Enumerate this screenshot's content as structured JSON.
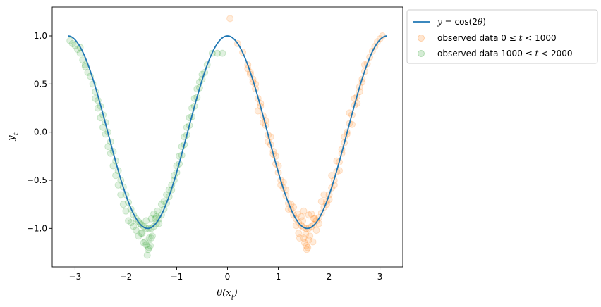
{
  "chart_data": {
    "type": "scatter",
    "xlabel": "θ(x_t)",
    "ylabel": "y_t",
    "xlim": [
      -3.45,
      3.45
    ],
    "ylim": [
      -1.4,
      1.3
    ],
    "xticks": [
      -3,
      -2,
      -1,
      0,
      1,
      2,
      3
    ],
    "xtick_labels": [
      "−3",
      "−2",
      "−1",
      "0",
      "1",
      "2",
      "3"
    ],
    "yticks": [
      -1.0,
      -0.5,
      0.0,
      0.5,
      1.0
    ],
    "ytick_labels": [
      "−1.0",
      "−0.5",
      "0.0",
      "0.5",
      "1.0"
    ],
    "grid": false,
    "legend": {
      "placement": "outside upper right",
      "entries": [
        {
          "label": "y = cos(2θ)",
          "marker": "line",
          "color": "#1f77b4"
        },
        {
          "label": "observed data 0 ≤ t < 1000",
          "marker": "circle",
          "color": "#ff7f0e"
        },
        {
          "label": "observed data 1000 ≤ t < 2000",
          "marker": "circle",
          "color": "#2ca02c"
        }
      ]
    },
    "series": [
      {
        "name": "y = cos(2θ)",
        "kind": "line",
        "color": "#1f77b4",
        "x": [
          -3.1416,
          -3.0,
          -2.8,
          -2.6,
          -2.4,
          -2.2,
          -2.0,
          -1.8,
          -1.6,
          -1.5708,
          -1.4,
          -1.2,
          -1.0,
          -0.8,
          -0.6,
          -0.4,
          -0.2,
          0.0,
          0.2,
          0.4,
          0.6,
          0.8,
          1.0,
          1.2,
          1.4,
          1.5708,
          1.6,
          1.8,
          2.0,
          2.2,
          2.4,
          2.6,
          2.8,
          3.0,
          3.1416
        ],
        "y": [
          1.0,
          0.96,
          0.775,
          0.469,
          0.087,
          -0.307,
          -0.654,
          -0.897,
          -0.998,
          -1.0,
          -0.942,
          -0.737,
          -0.416,
          -0.029,
          0.362,
          0.697,
          0.921,
          1.0,
          0.921,
          0.697,
          0.362,
          -0.029,
          -0.416,
          -0.737,
          -0.942,
          -1.0,
          -0.998,
          -0.897,
          -0.654,
          -0.307,
          0.087,
          0.469,
          0.775,
          0.96,
          1.0
        ]
      },
      {
        "name": "observed data 0 ≤ t < 1000",
        "kind": "scatter",
        "color": "#ff7f0e",
        "alpha": 0.15,
        "x": [
          0.05,
          0.2,
          0.3,
          0.4,
          0.45,
          0.5,
          0.55,
          0.6,
          0.65,
          0.7,
          0.75,
          0.8,
          0.85,
          0.9,
          0.95,
          1.0,
          1.05,
          1.1,
          1.15,
          1.2,
          1.25,
          1.3,
          1.35,
          1.4,
          1.45,
          1.5,
          1.55,
          1.6,
          1.65,
          1.7,
          1.75,
          1.8,
          1.85,
          1.9,
          1.95,
          2.0,
          2.05,
          2.1,
          2.15,
          2.2,
          2.25,
          2.3,
          2.35,
          2.4,
          2.45,
          2.5,
          2.55,
          2.6,
          2.65,
          2.7,
          2.75,
          2.8,
          2.85,
          2.9,
          2.95,
          3.0,
          3.05,
          1.5,
          1.6,
          1.45,
          1.65,
          1.55,
          1.4,
          1.7,
          1.35,
          1.75,
          1.3,
          1.8,
          1.25,
          1.85,
          1.2,
          1.9,
          1.15,
          1.95,
          1.1,
          2.0,
          1.05,
          2.05,
          1.0,
          2.1,
          0.95,
          2.15,
          0.9,
          2.2,
          0.85,
          2.25,
          0.8,
          2.3,
          0.75,
          2.35,
          0.7,
          2.4,
          0.65,
          2.45,
          0.6,
          2.5,
          0.55,
          2.55,
          0.5,
          2.6,
          0.45,
          2.65,
          0.4,
          2.7,
          1.58,
          1.52,
          1.62,
          1.48,
          1.56,
          1.54,
          1.42,
          1.68,
          1.38,
          1.72,
          1.5,
          1.6
        ],
        "y": [
          1.18,
          0.92,
          0.83,
          0.7,
          0.62,
          0.55,
          0.45,
          0.35,
          0.27,
          0.17,
          0.07,
          -0.03,
          -0.13,
          -0.23,
          -0.33,
          -0.42,
          -0.5,
          -0.58,
          -0.66,
          -0.74,
          -0.8,
          -0.86,
          -0.9,
          -0.94,
          -0.97,
          -0.99,
          -1.0,
          -1.0,
          -0.98,
          -0.96,
          -0.92,
          -0.89,
          -0.84,
          -0.78,
          -0.72,
          -0.65,
          -0.58,
          -0.5,
          -0.41,
          -0.31,
          -0.22,
          -0.11,
          -0.02,
          0.09,
          0.18,
          0.28,
          0.37,
          0.47,
          0.55,
          0.63,
          0.71,
          0.78,
          0.84,
          0.89,
          0.94,
          0.97,
          1.0,
          -1.1,
          -1.12,
          -0.88,
          -0.85,
          -1.18,
          -1.05,
          -0.9,
          -0.97,
          -1.02,
          -0.78,
          -0.95,
          -0.75,
          -0.72,
          -0.8,
          -0.65,
          -0.6,
          -0.75,
          -0.52,
          -0.7,
          -0.55,
          -0.45,
          -0.35,
          -0.55,
          -0.25,
          -0.3,
          -0.2,
          -0.4,
          -0.05,
          -0.18,
          -0.1,
          -0.05,
          0.12,
          0.0,
          0.1,
          0.2,
          0.3,
          0.08,
          0.22,
          0.35,
          0.5,
          0.3,
          0.52,
          0.42,
          0.6,
          0.52,
          0.66,
          0.7,
          -1.2,
          -1.15,
          -1.08,
          -0.92,
          -1.22,
          -1.06,
          -1.1,
          -1.14,
          -0.85,
          -0.9,
          -0.82,
          -0.86
        ]
      },
      {
        "name": "observed data 1000 ≤ t < 2000",
        "kind": "scatter",
        "color": "#2ca02c",
        "alpha": 0.15,
        "x": [
          -3.1,
          -3.05,
          -3.0,
          -2.95,
          -2.9,
          -2.85,
          -2.8,
          -2.75,
          -2.7,
          -2.65,
          -2.6,
          -2.55,
          -2.5,
          -2.45,
          -2.4,
          -2.35,
          -2.3,
          -2.25,
          -2.2,
          -2.15,
          -2.1,
          -2.05,
          -2.0,
          -1.95,
          -1.9,
          -1.85,
          -1.8,
          -1.75,
          -1.7,
          -1.65,
          -1.6,
          -1.55,
          -1.5,
          -1.45,
          -1.4,
          -1.35,
          -1.3,
          -1.25,
          -1.2,
          -1.15,
          -1.1,
          -1.05,
          -1.0,
          -0.95,
          -0.9,
          -0.85,
          -0.8,
          -0.75,
          -0.7,
          -0.65,
          -0.6,
          -0.55,
          -0.5,
          -0.45,
          -0.4,
          -0.3,
          -0.2,
          -0.1,
          -1.55,
          -1.6,
          -1.5,
          -1.65,
          -1.45,
          -1.7,
          -1.4,
          -1.75,
          -1.35,
          -1.8,
          -1.3,
          -1.85,
          -1.25,
          -1.9,
          -1.2,
          -1.95,
          -1.15,
          -2.0,
          -1.1,
          -2.05,
          -1.05,
          -2.1,
          -1.0,
          -2.15,
          -0.95,
          -2.2,
          -0.9,
          -2.25,
          -0.85,
          -2.3,
          -0.8,
          -2.35,
          -0.75,
          -2.4,
          -0.7,
          -2.45,
          -0.65,
          -2.5,
          -0.6,
          -2.55,
          -0.55,
          -2.6,
          -0.5,
          -2.8,
          -2.9,
          -1.58,
          -1.52,
          -1.62,
          -1.48,
          -1.56,
          -1.54,
          -1.42,
          -1.68,
          -1.38,
          -1.72,
          -1.5,
          -1.6
        ],
        "y": [
          0.95,
          0.92,
          0.9,
          0.86,
          0.82,
          0.75,
          0.7,
          0.62,
          0.58,
          0.5,
          0.42,
          0.33,
          0.27,
          0.18,
          0.1,
          0.0,
          -0.1,
          -0.2,
          -0.3,
          -0.4,
          -0.5,
          -0.57,
          -0.65,
          -0.73,
          -0.8,
          -0.86,
          -0.9,
          -0.93,
          -0.96,
          -0.98,
          -1.0,
          -1.0,
          -1.0,
          -0.98,
          -0.95,
          -0.9,
          -0.86,
          -0.8,
          -0.74,
          -0.67,
          -0.6,
          -0.5,
          -0.42,
          -0.33,
          -0.24,
          -0.13,
          -0.03,
          0.07,
          0.16,
          0.27,
          0.36,
          0.46,
          0.55,
          0.62,
          0.7,
          0.82,
          0.82,
          0.82,
          -1.2,
          -1.17,
          -1.1,
          -1.15,
          -0.85,
          -1.05,
          -0.88,
          -1.08,
          -0.95,
          -1.02,
          -0.75,
          -0.98,
          -0.72,
          -0.94,
          -0.65,
          -0.92,
          -0.6,
          -0.82,
          -0.55,
          -0.75,
          -0.45,
          -0.65,
          -0.35,
          -0.55,
          -0.25,
          -0.45,
          -0.15,
          -0.35,
          -0.05,
          -0.22,
          0.05,
          -0.15,
          0.15,
          -0.02,
          0.25,
          0.05,
          0.35,
          0.15,
          0.45,
          0.25,
          0.52,
          0.35,
          0.6,
          0.68,
          0.88,
          -1.28,
          -1.18,
          -1.14,
          -1.08,
          -1.22,
          -1.1,
          -0.9,
          -1.05,
          -0.82,
          -0.95,
          -0.9,
          -0.92
        ]
      }
    ]
  }
}
